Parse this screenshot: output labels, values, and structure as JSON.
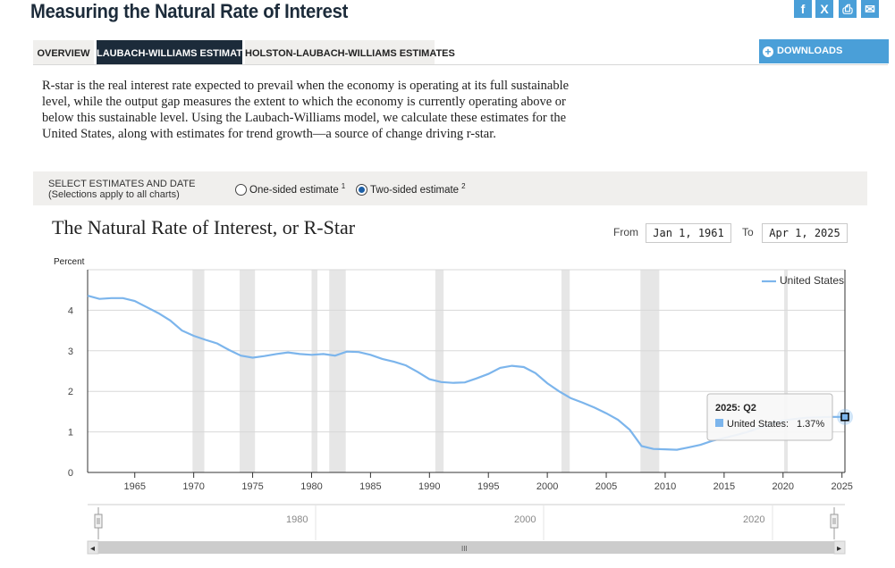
{
  "page": {
    "title": "Measuring the Natural Rate of Interest"
  },
  "share": {
    "facebook": "f",
    "twitter": "X",
    "print": "⎙",
    "email": "✉"
  },
  "tabs": [
    {
      "label": "OVERVIEW"
    },
    {
      "label": "LAUBACH-WILLIAMS ESTIMATES"
    },
    {
      "label": "HOLSTON-LAUBACH-WILLIAMS ESTIMATES"
    }
  ],
  "downloads": {
    "label": "DOWNLOADS",
    "icon": "+"
  },
  "intro": "R-star is the real interest rate expected to prevail when the economy is operating at its full sustainable level, while the output gap measures the extent to which the economy is currently operating above or below this sustainable level. Using the Laubach-Williams model, we calculate these estimates for the United States, along with estimates for trend growth—a source of change driving r-star.",
  "selection": {
    "title": "SELECT ESTIMATES AND DATE",
    "note": "(Selections apply to all charts)",
    "options": [
      {
        "label": "One-sided estimate",
        "sup": "1",
        "selected": false
      },
      {
        "label": "Two-sided estimate",
        "sup": "2",
        "selected": true
      }
    ]
  },
  "chart": {
    "title": "The Natural Rate of Interest, or R-Star",
    "from_label": "From",
    "from_value": "Jan 1, 1961",
    "to_label": "To",
    "to_value": "Apr 1, 2025",
    "tooltip": {
      "title": "2025: Q2",
      "series": "United States:",
      "value": "1.37%"
    },
    "navigator": {
      "labels": [
        "1980",
        "2000",
        "2020"
      ],
      "scroll_left": "◂",
      "scroll_right": "▸",
      "grip": "III"
    },
    "colors": {
      "line": "#7cb5ec",
      "recession": "#e6e6e6"
    }
  },
  "chart_data": {
    "type": "line",
    "title": "The Natural Rate of Interest, or R-Star",
    "ylabel": "Percent",
    "xlabel": "",
    "xlim": [
      1961,
      2025.25
    ],
    "ylim": [
      0,
      5
    ],
    "yticks": [
      0,
      1,
      2,
      3,
      4
    ],
    "xticks": [
      1965,
      1970,
      1975,
      1980,
      1985,
      1990,
      1995,
      2000,
      2005,
      2010,
      2015,
      2020,
      2025
    ],
    "legend": "top-right",
    "grid": true,
    "recessions": [
      [
        1969.9,
        1970.9
      ],
      [
        1973.9,
        1975.2
      ],
      [
        1980.0,
        1980.5
      ],
      [
        1981.5,
        1982.9
      ],
      [
        1990.5,
        1991.2
      ],
      [
        2001.2,
        2001.9
      ],
      [
        2007.9,
        2009.5
      ],
      [
        2020.1,
        2020.4
      ]
    ],
    "series": [
      {
        "name": "United States",
        "points": [
          [
            1961,
            4.36
          ],
          [
            1962,
            4.28
          ],
          [
            1963,
            4.3
          ],
          [
            1964,
            4.3
          ],
          [
            1965,
            4.23
          ],
          [
            1966,
            4.08
          ],
          [
            1967,
            3.93
          ],
          [
            1968,
            3.75
          ],
          [
            1969,
            3.5
          ],
          [
            1970,
            3.37
          ],
          [
            1971,
            3.27
          ],
          [
            1972,
            3.18
          ],
          [
            1973,
            3.02
          ],
          [
            1974,
            2.88
          ],
          [
            1975,
            2.83
          ],
          [
            1976,
            2.87
          ],
          [
            1977,
            2.92
          ],
          [
            1978,
            2.96
          ],
          [
            1979,
            2.92
          ],
          [
            1980,
            2.9
          ],
          [
            1981,
            2.92
          ],
          [
            1982,
            2.88
          ],
          [
            1983,
            2.98
          ],
          [
            1984,
            2.97
          ],
          [
            1985,
            2.9
          ],
          [
            1986,
            2.8
          ],
          [
            1987,
            2.73
          ],
          [
            1988,
            2.64
          ],
          [
            1989,
            2.48
          ],
          [
            1990,
            2.3
          ],
          [
            1991,
            2.23
          ],
          [
            1992,
            2.21
          ],
          [
            1993,
            2.22
          ],
          [
            1994,
            2.32
          ],
          [
            1995,
            2.43
          ],
          [
            1996,
            2.58
          ],
          [
            1997,
            2.63
          ],
          [
            1998,
            2.6
          ],
          [
            1999,
            2.45
          ],
          [
            2000,
            2.2
          ],
          [
            2001,
            2.0
          ],
          [
            2002,
            1.83
          ],
          [
            2003,
            1.72
          ],
          [
            2004,
            1.6
          ],
          [
            2005,
            1.46
          ],
          [
            2006,
            1.3
          ],
          [
            2007,
            1.05
          ],
          [
            2008,
            0.65
          ],
          [
            2009,
            0.58
          ],
          [
            2010,
            0.57
          ],
          [
            2011,
            0.56
          ],
          [
            2012,
            0.62
          ],
          [
            2013,
            0.68
          ],
          [
            2014,
            0.78
          ],
          [
            2015,
            0.85
          ],
          [
            2016,
            0.92
          ],
          [
            2017,
            1.0
          ],
          [
            2018,
            1.1
          ],
          [
            2019,
            1.2
          ],
          [
            2020,
            1.28
          ],
          [
            2021,
            1.32
          ],
          [
            2022,
            1.35
          ],
          [
            2023,
            1.36
          ],
          [
            2024,
            1.37
          ],
          [
            2025.25,
            1.37
          ]
        ]
      }
    ]
  }
}
